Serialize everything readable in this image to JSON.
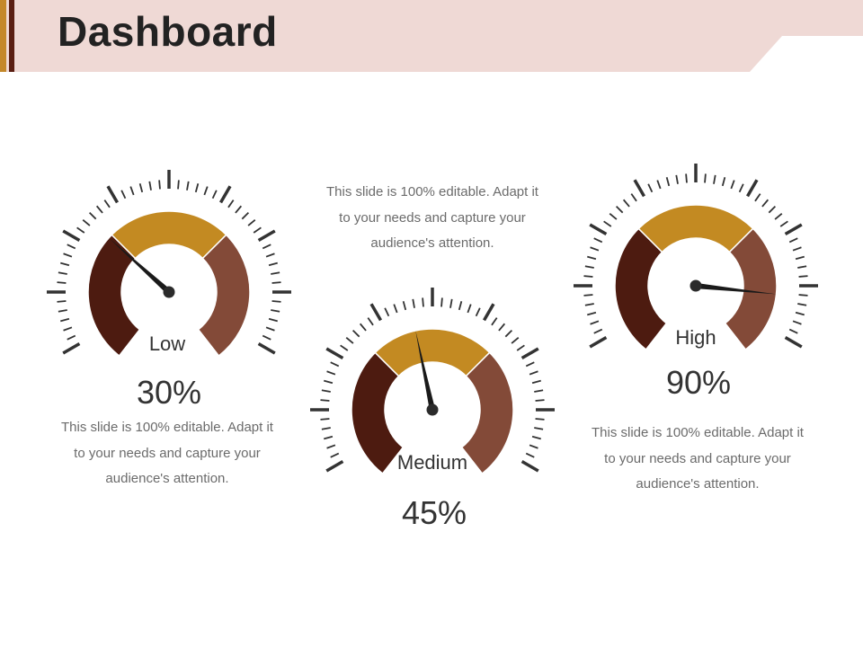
{
  "title": "Dashboard",
  "colors": {
    "header_band": "#efd9d5",
    "accent_gold": "#c4882a",
    "accent_dark": "#5a1e12",
    "segment_low": "#4d1b10",
    "segment_mid": "#c38a22",
    "segment_high": "#834a38",
    "tick": "#333333",
    "needle": "#1a1a1a"
  },
  "description": "This slide is 100% editable. Adapt it to your needs and capture your audience's attention.",
  "chart_data": [
    {
      "type": "gauge",
      "label": "Low",
      "value": 30,
      "value_text": "30%",
      "range": [
        0,
        100
      ]
    },
    {
      "type": "gauge",
      "label": "Medium",
      "value": 45,
      "value_text": "45%",
      "range": [
        0,
        100
      ]
    },
    {
      "type": "gauge",
      "label": "High",
      "value": 90,
      "value_text": "90%",
      "range": [
        0,
        100
      ]
    }
  ]
}
